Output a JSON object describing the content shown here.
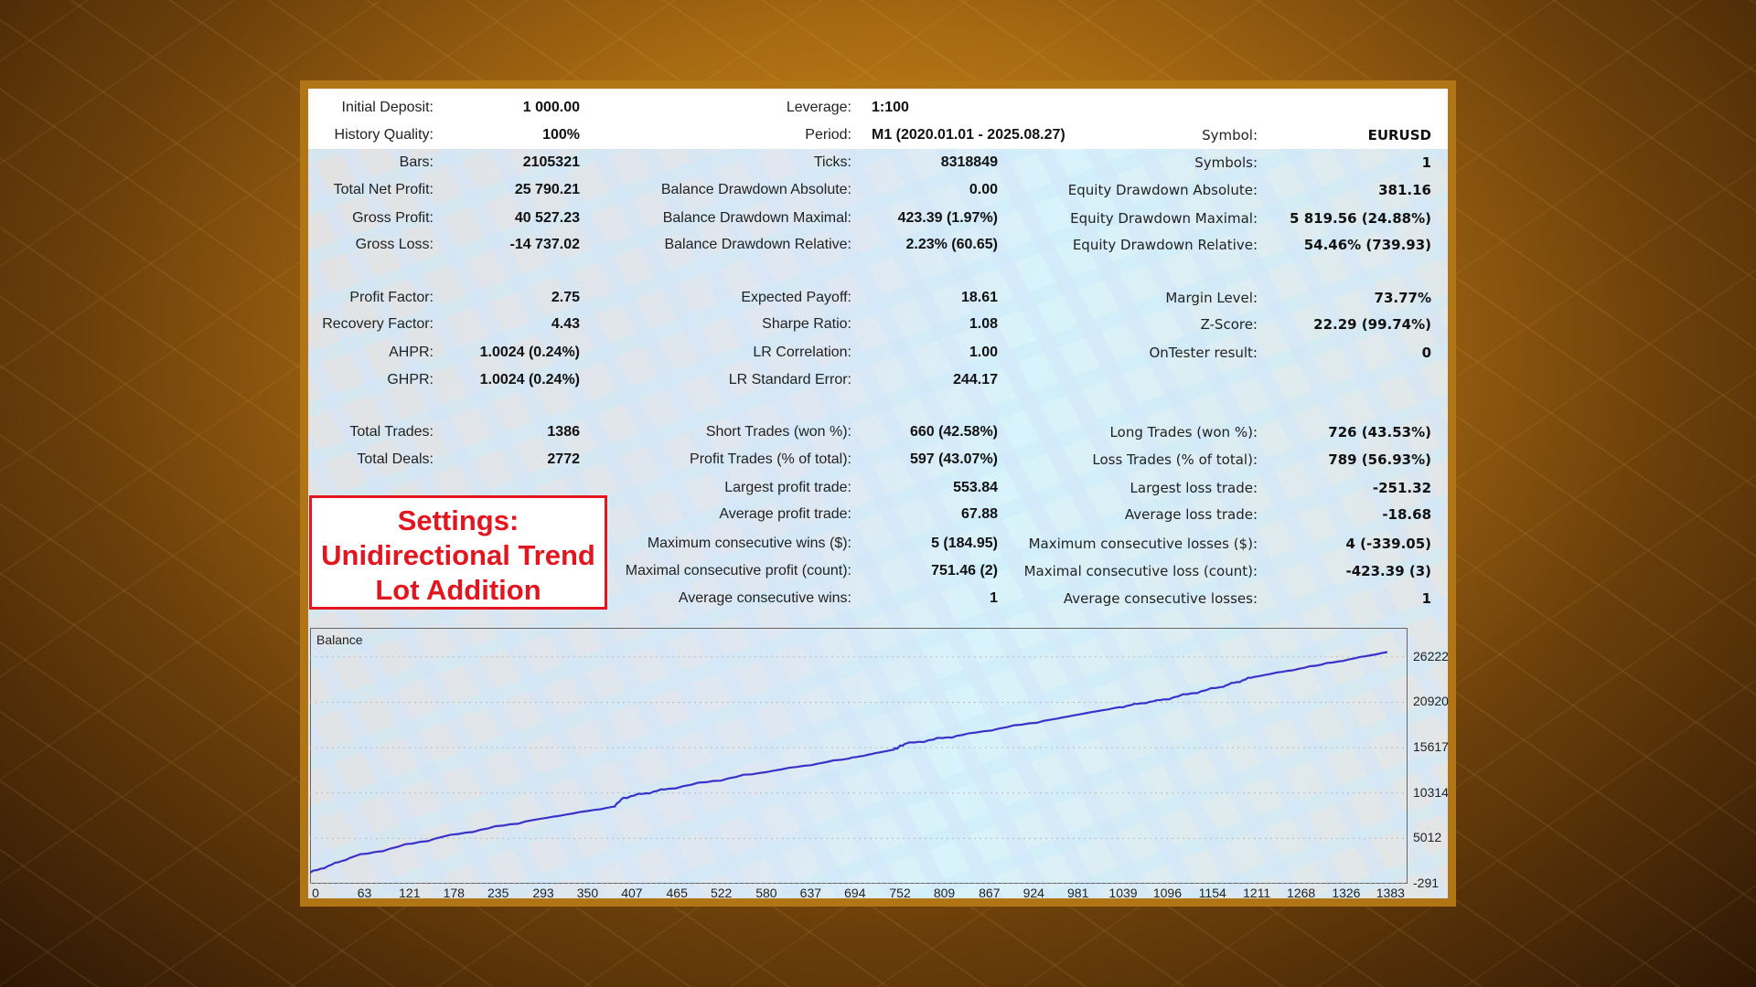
{
  "report": {
    "rows": [
      [
        {
          "label": "Initial Deposit:",
          "value": "1 000.00"
        },
        {
          "label": "Leverage:",
          "value": "1:100",
          "align": "left"
        },
        null
      ],
      [
        {
          "label": "History Quality:",
          "value": "100%"
        },
        {
          "label": "Period:",
          "value": "M1 (2020.01.01 - 2025.08.27)",
          "align": "left"
        },
        {
          "label": "Symbol:",
          "value": "EURUSD"
        }
      ],
      [
        {
          "label": "Bars:",
          "value": "2105321"
        },
        {
          "label": "Ticks:",
          "value": "8318849"
        },
        {
          "label": "Symbols:",
          "value": "1"
        }
      ],
      [
        {
          "label": "Total Net Profit:",
          "value": "25 790.21"
        },
        {
          "label": "Balance Drawdown Absolute:",
          "value": "0.00"
        },
        {
          "label": "Equity Drawdown Absolute:",
          "value": "381.16"
        }
      ],
      [
        {
          "label": "Gross Profit:",
          "value": "40 527.23"
        },
        {
          "label": "Balance Drawdown Maximal:",
          "value": "423.39 (1.97%)"
        },
        {
          "label": "Equity Drawdown Maximal:",
          "value": "5 819.56 (24.88%)"
        }
      ],
      [
        {
          "label": "Gross Loss:",
          "value": "-14 737.02"
        },
        {
          "label": "Balance Drawdown Relative:",
          "value": "2.23% (60.65)"
        },
        {
          "label": "Equity Drawdown Relative:",
          "value": "54.46% (739.93)"
        }
      ],
      [
        {
          "label": "Profit Factor:",
          "value": "2.75"
        },
        {
          "label": "Expected Payoff:",
          "value": "18.61"
        },
        {
          "label": "Margin Level:",
          "value": "73.77%"
        }
      ],
      [
        {
          "label": "Recovery Factor:",
          "value": "4.43"
        },
        {
          "label": "Sharpe Ratio:",
          "value": "1.08"
        },
        {
          "label": "Z-Score:",
          "value": "22.29 (99.74%)"
        }
      ],
      [
        {
          "label": "AHPR:",
          "value": "1.0024 (0.24%)"
        },
        {
          "label": "LR Correlation:",
          "value": "1.00"
        },
        {
          "label": "OnTester result:",
          "value": "0"
        }
      ],
      [
        {
          "label": "GHPR:",
          "value": "1.0024 (0.24%)"
        },
        {
          "label": "LR Standard Error:",
          "value": "244.17"
        },
        null
      ],
      [
        {
          "label": "Total Trades:",
          "value": "1386"
        },
        {
          "label": "Short Trades (won %):",
          "value": "660 (42.58%)"
        },
        {
          "label": "Long Trades (won %):",
          "value": "726 (43.53%)"
        }
      ],
      [
        {
          "label": "Total Deals:",
          "value": "2772"
        },
        {
          "label": "Profit Trades (% of total):",
          "value": "597 (43.07%)"
        },
        {
          "label": "Loss Trades (% of total):",
          "value": "789 (56.93%)"
        }
      ],
      [
        null,
        {
          "label": "Largest profit trade:",
          "value": "553.84"
        },
        {
          "label": "Largest loss trade:",
          "value": "-251.32"
        }
      ],
      [
        null,
        {
          "label": "Average profit trade:",
          "value": "67.88"
        },
        {
          "label": "Average loss trade:",
          "value": "-18.68"
        }
      ],
      [
        null,
        {
          "label": "Maximum consecutive wins ($):",
          "value": "5 (184.95)"
        },
        {
          "label": "Maximum consecutive losses ($):",
          "value": "4 (-339.05)"
        }
      ],
      [
        null,
        {
          "label": "Maximal consecutive profit (count):",
          "value": "751.46 (2)"
        },
        {
          "label": "Maximal consecutive loss (count):",
          "value": "-423.39 (3)"
        }
      ],
      [
        null,
        {
          "label": "Average consecutive wins:",
          "value": "1"
        },
        {
          "label": "Average consecutive losses:",
          "value": "1"
        }
      ]
    ]
  },
  "settings_box": {
    "line1": "Settings:",
    "line2": "Unidirectional Trend",
    "line3": "Lot Addition",
    "color": "#e3151f"
  },
  "chart_data": {
    "type": "line",
    "title": "Balance",
    "line_color": "#3a32c8",
    "x_ticks": [
      "0",
      "63",
      "121",
      "178",
      "235",
      "293",
      "350",
      "407",
      "465",
      "522",
      "580",
      "637",
      "694",
      "752",
      "809",
      "867",
      "924",
      "981",
      "1039",
      "1096",
      "1154",
      "1211",
      "1268",
      "1326",
      "1383"
    ],
    "y_ticks": [
      "26222",
      "20920",
      "15617",
      "10314",
      "5012",
      "-291"
    ],
    "xlim": [
      0,
      1412
    ],
    "ylim": [
      -291,
      29620
    ],
    "series": [
      {
        "x": [
          0,
          55,
          171,
          287,
          391,
          403,
          461,
          577,
          693,
          751,
          765,
          838,
          954,
          1041,
          1099,
          1171,
          1214,
          1301,
          1386
        ],
        "y": [
          1000,
          2844,
          5195,
          7154,
          8722,
          9766,
          10811,
          12640,
          14338,
          15383,
          16036,
          17081,
          18910,
          20346,
          21261,
          22697,
          23873,
          25310,
          26790
        ]
      }
    ]
  }
}
